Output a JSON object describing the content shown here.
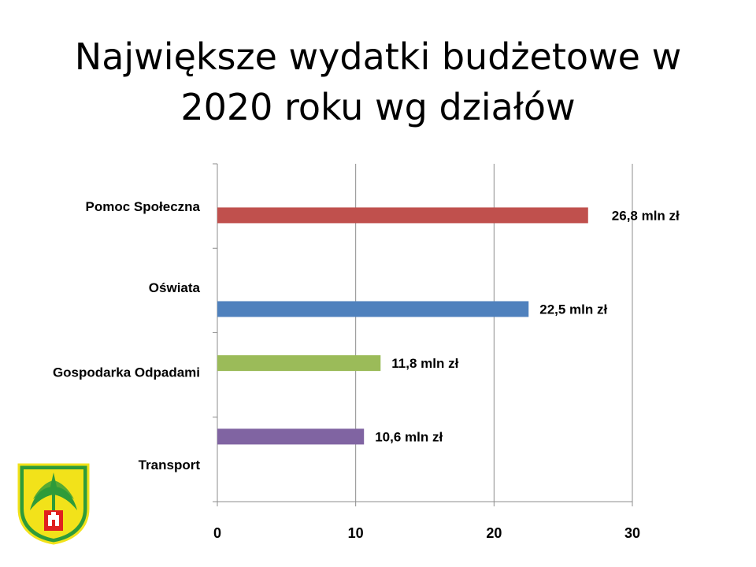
{
  "title_lines": [
    "Największe wydatki budżetowe w",
    "2020 roku wg działów"
  ],
  "chart_data": {
    "type": "bar",
    "orientation": "horizontal",
    "title": "Największe wydatki budżetowe w 2020 roku wg działów",
    "categories": [
      "Pomoc Społeczna",
      "Oświata",
      "Gospodarka Odpadami",
      "Transport"
    ],
    "values": [
      26.8,
      22.5,
      11.8,
      10.6
    ],
    "value_labels": [
      "26,8 mln zł",
      "22,5 mln zł",
      "11,8 mln zł",
      "10,6 mln zł"
    ],
    "colors": [
      "#c0504d",
      "#4f81bd",
      "#9bbb59",
      "#8064a2"
    ],
    "xlim": [
      0,
      30
    ],
    "xticks": [
      0,
      10,
      20,
      30
    ],
    "grid": "vertical",
    "legend": "none"
  },
  "logo": {
    "icon": "coat-of-arms-icon",
    "colors": {
      "green": "#2e9b3a",
      "yellow": "#f2e21a",
      "red": "#e02020"
    }
  }
}
